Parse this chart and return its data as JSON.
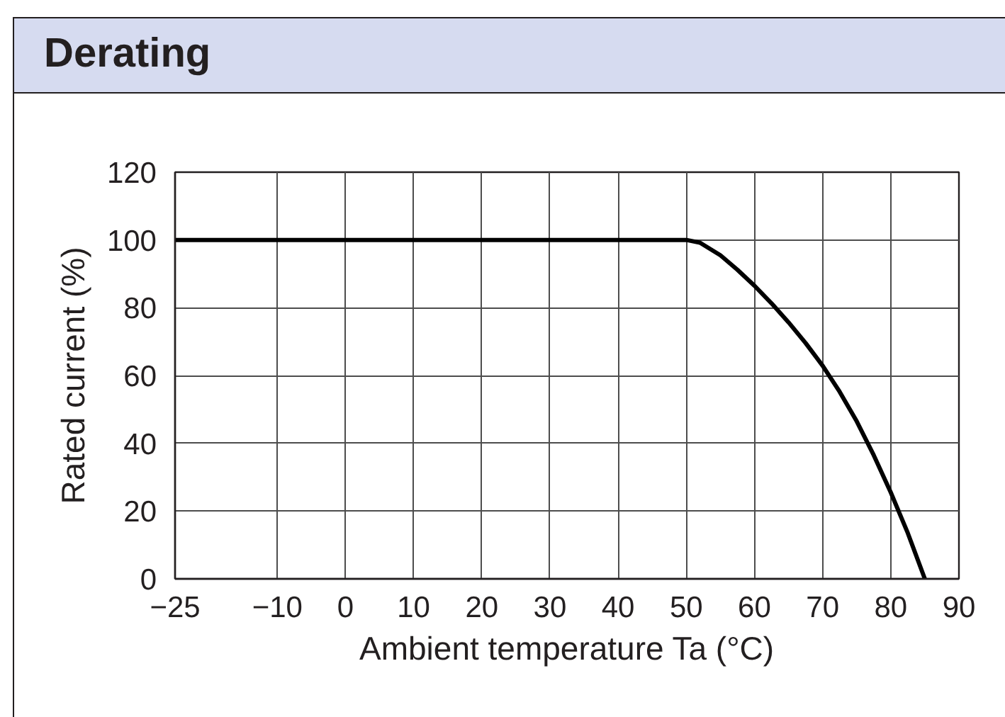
{
  "chart_data": {
    "type": "line",
    "title": "Derating",
    "xlabel": "Ambient temperature Ta (°C)",
    "ylabel": "Rated current (%)",
    "x": [
      -25,
      50,
      52,
      55,
      57.5,
      60,
      62.5,
      65,
      67.5,
      70,
      72.5,
      75,
      77.5,
      80,
      82.5,
      85
    ],
    "series": [
      {
        "color": "#000000",
        "values": [
          100,
          100,
          99.2,
          95.5,
          91.2,
          86.5,
          81.3,
          75.7,
          69.6,
          62.9,
          55.2,
          46.5,
          36.5,
          25.5,
          13.5,
          0
        ]
      }
    ],
    "xlim": [
      -25,
      90
    ],
    "ylim": [
      0,
      120
    ],
    "xticks": [
      {
        "value": -25,
        "label": "−25"
      },
      {
        "value": -10,
        "label": "−10"
      },
      0,
      10,
      20,
      30,
      40,
      50,
      60,
      70,
      80,
      90
    ],
    "yticks": [
      0,
      20,
      40,
      60,
      80,
      100,
      120
    ],
    "grid": true,
    "line_style": "solid"
  }
}
